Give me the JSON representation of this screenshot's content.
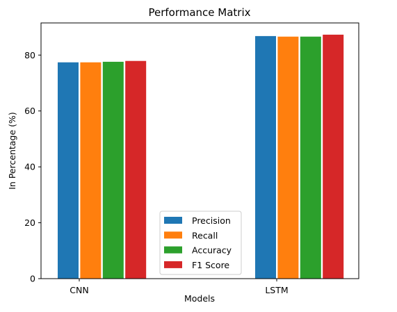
{
  "chart_data": {
    "type": "bar",
    "title": "Performance Matrix",
    "xlabel": "Models",
    "ylabel": "In Percentage (%)",
    "categories": [
      "CNN",
      "LSTM"
    ],
    "ylim": [
      0,
      91.5
    ],
    "yticks": [
      0,
      20,
      40,
      60,
      80
    ],
    "grid": false,
    "legend_position": "lower center",
    "series": [
      {
        "name": "Precision",
        "color": "#1f77b4",
        "values": [
          77.4,
          86.8
        ]
      },
      {
        "name": "Recall",
        "color": "#ff7f0e",
        "values": [
          77.4,
          86.6
        ]
      },
      {
        "name": "Accuracy",
        "color": "#2ca02c",
        "values": [
          77.6,
          86.6
        ]
      },
      {
        "name": "F1 Score",
        "color": "#d62728",
        "values": [
          77.9,
          87.3
        ]
      }
    ]
  }
}
